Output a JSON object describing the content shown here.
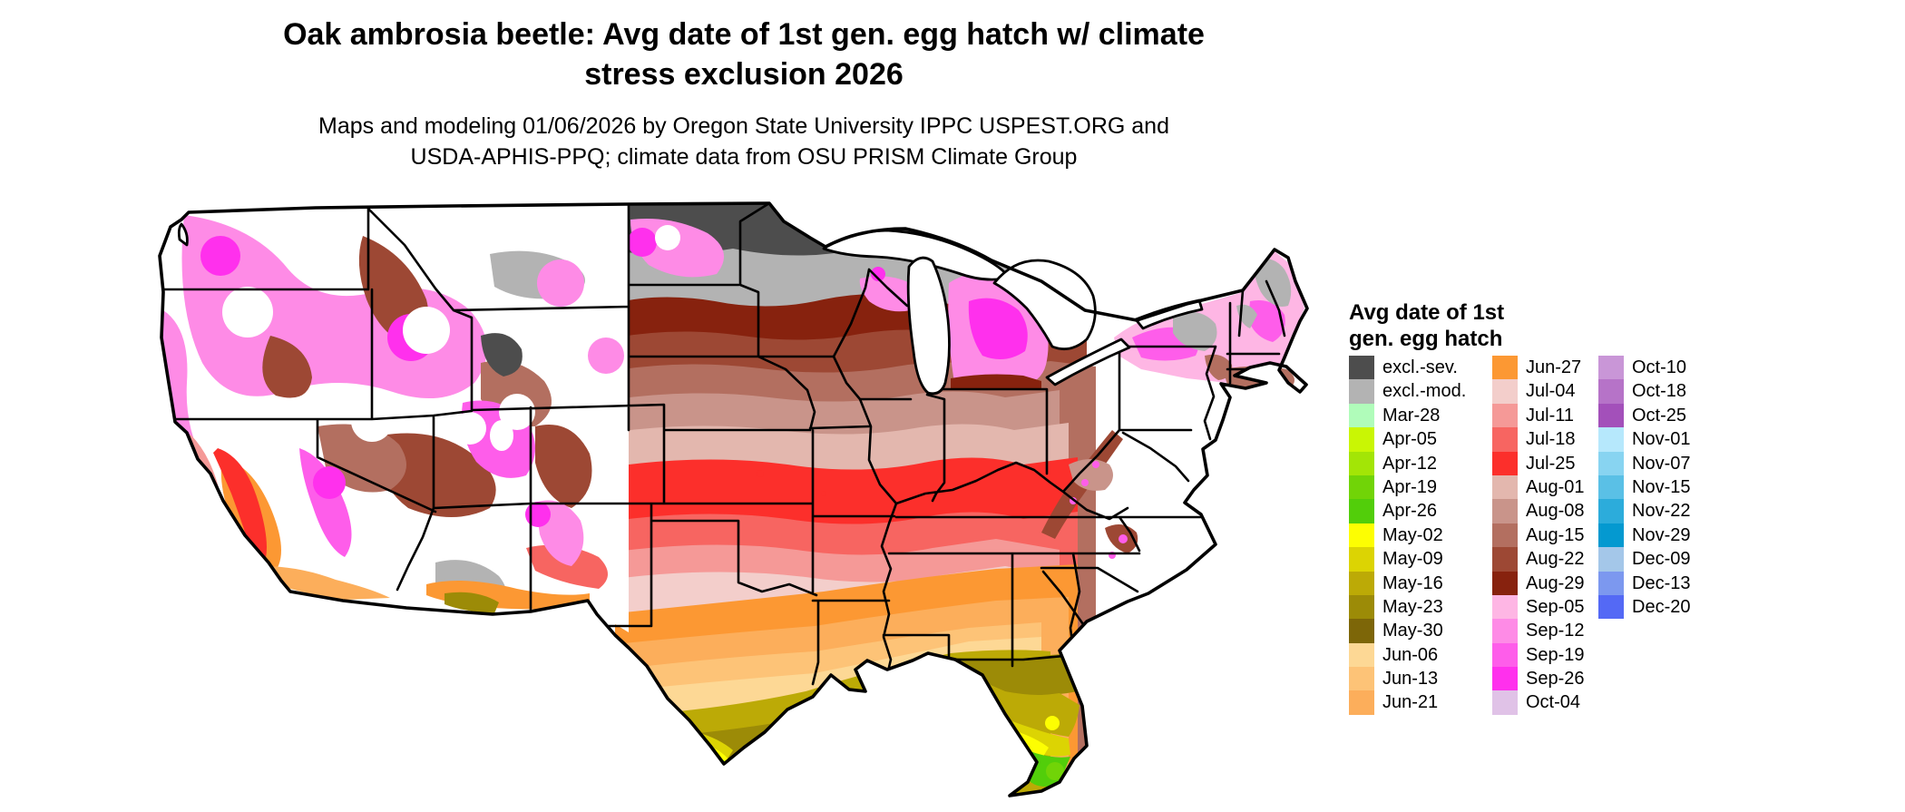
{
  "title": {
    "line1": "Oak ambrosia beetle: Avg date of 1st gen. egg hatch w/ climate",
    "line2": "stress exclusion 2026"
  },
  "subtitle": {
    "line1": "Maps and modeling 01/06/2026 by Oregon State University IPPC USPEST.ORG and",
    "line2": "USDA-APHIS-PPQ; climate data from OSU PRISM Climate Group"
  },
  "legend": {
    "title_line1": "Avg date of 1st",
    "title_line2": "gen. egg hatch",
    "columns": [
      [
        {
          "label": "excl.-sev.",
          "color": "#4d4d4d"
        },
        {
          "label": "excl.-mod.",
          "color": "#b3b3b3"
        },
        {
          "label": "Mar-28",
          "color": "#b0fcba"
        },
        {
          "label": "Apr-05",
          "color": "#c9f604"
        },
        {
          "label": "Apr-12",
          "color": "#a3e506"
        },
        {
          "label": "Apr-19",
          "color": "#71d407"
        },
        {
          "label": "Apr-26",
          "color": "#52ce0a"
        },
        {
          "label": "May-02",
          "color": "#fdfe02"
        },
        {
          "label": "May-09",
          "color": "#dcd403"
        },
        {
          "label": "May-16",
          "color": "#bcaa06"
        },
        {
          "label": "May-23",
          "color": "#9c8b07"
        },
        {
          "label": "May-30",
          "color": "#7d6608"
        },
        {
          "label": "Jun-06",
          "color": "#fdd895"
        },
        {
          "label": "Jun-13",
          "color": "#fdc377"
        },
        {
          "label": "Jun-21",
          "color": "#fcae5b"
        }
      ],
      [
        {
          "label": "Jun-27",
          "color": "#fc9833"
        },
        {
          "label": "Jul-04",
          "color": "#f3cecb"
        },
        {
          "label": "Jul-11",
          "color": "#f59997"
        },
        {
          "label": "Jul-18",
          "color": "#f76561"
        },
        {
          "label": "Jul-25",
          "color": "#fc2f2b"
        },
        {
          "label": "Aug-01",
          "color": "#e3b7ae"
        },
        {
          "label": "Aug-08",
          "color": "#c9948a"
        },
        {
          "label": "Aug-15",
          "color": "#b36f60"
        },
        {
          "label": "Aug-22",
          "color": "#9d4834"
        },
        {
          "label": "Aug-29",
          "color": "#87220e"
        },
        {
          "label": "Sep-05",
          "color": "#feb6e4"
        },
        {
          "label": "Sep-12",
          "color": "#fe8be6"
        },
        {
          "label": "Sep-19",
          "color": "#fe5dea"
        },
        {
          "label": "Sep-26",
          "color": "#ff30ed"
        },
        {
          "label": "Oct-04",
          "color": "#e0c2e7"
        }
      ],
      [
        {
          "label": "Oct-10",
          "color": "#c996d7"
        },
        {
          "label": "Oct-18",
          "color": "#b673c8"
        },
        {
          "label": "Oct-25",
          "color": "#a350ba"
        },
        {
          "label": "Nov-01",
          "color": "#b6e8fc"
        },
        {
          "label": "Nov-07",
          "color": "#88d4f1"
        },
        {
          "label": "Nov-15",
          "color": "#5ac0e6"
        },
        {
          "label": "Nov-22",
          "color": "#2cacdb"
        },
        {
          "label": "Nov-29",
          "color": "#0499d0"
        },
        {
          "label": "Dec-09",
          "color": "#a4c7e9"
        },
        {
          "label": "Dec-13",
          "color": "#7c98ef"
        },
        {
          "label": "Dec-20",
          "color": "#5469f5"
        }
      ]
    ]
  },
  "map": {
    "palette": {
      "excl_sev": "#4d4d4d",
      "excl_mod": "#b3b3b3",
      "mar28": "#b0fcba",
      "apr05": "#c9f604",
      "apr12": "#a3e506",
      "apr19": "#71d407",
      "apr26": "#52ce0a",
      "may02": "#fdfe02",
      "may09": "#dcd403",
      "may16": "#bcaa06",
      "may23": "#9c8b07",
      "may30": "#7d6608",
      "jun06": "#fdd895",
      "jun13": "#fdc377",
      "jun21": "#fcae5b",
      "jun27": "#fc9833",
      "jul04": "#f3cecb",
      "jul11": "#f59997",
      "jul18": "#f76561",
      "jul25": "#fc2f2b",
      "aug01": "#e3b7ae",
      "aug08": "#c9948a",
      "aug15": "#b36f60",
      "aug22": "#9d4834",
      "aug29": "#87220e",
      "sep05": "#feb6e4",
      "sep12": "#fe8be6",
      "sep19": "#fe5dea",
      "sep26": "#ff30ed",
      "white": "#ffffff",
      "border": "#000000"
    }
  }
}
